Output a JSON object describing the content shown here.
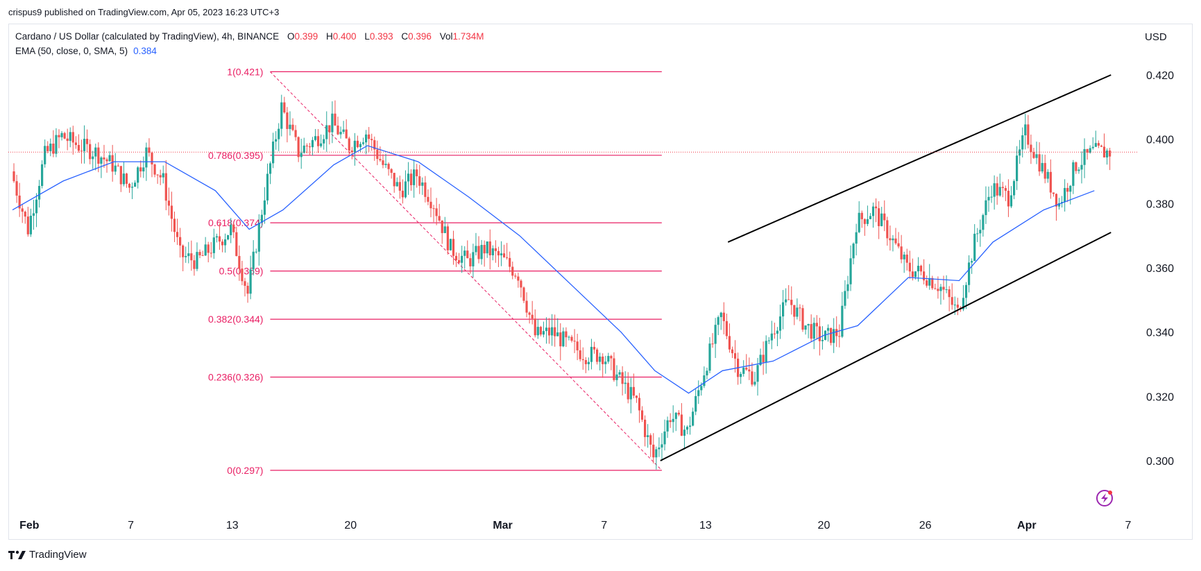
{
  "header": {
    "published_line": "crispus9 published on TradingView.com, Apr 05, 2023 16:23 UTC+3"
  },
  "legend": {
    "symbol": "Cardano / US Dollar (calculated by TradingView), 4h, BINANCE",
    "o_key": "O",
    "o_val": "0.399",
    "h_key": "H",
    "h_val": "0.400",
    "l_key": "L",
    "l_val": "0.393",
    "c_key": "C",
    "c_val": "0.396",
    "vol_key": "Vol",
    "vol_val": "1.734M",
    "ema_label": "EMA (50, close, 0, SMA, 5)",
    "ema_val": "0.384"
  },
  "axis": {
    "currency": "USD"
  },
  "footer": {
    "brand": "TradingView",
    "logo_text": "17"
  },
  "colors": {
    "up": "#26a69a",
    "down": "#ef5350",
    "ema": "#2962ff",
    "fib": "#e91e63",
    "channel": "#000000",
    "price_line": "#f23645",
    "grid": "#ffffff"
  },
  "chart_data": {
    "type": "candlestick",
    "title": "Cardano / US Dollar (calculated by TradingView), 4h, BINANCE",
    "ylabel": "USD",
    "ylim": [
      0.285,
      0.432
    ],
    "xlim": [
      "2023-01-31",
      "2023-04-07"
    ],
    "y_ticks": [
      0.3,
      0.32,
      0.34,
      0.36,
      0.38,
      0.4,
      0.42
    ],
    "y_tick_labels": [
      "0.300",
      "0.320",
      "0.340",
      "0.360",
      "0.380",
      "0.400",
      "0.420"
    ],
    "x_ticks": [
      {
        "label": "Feb",
        "date": "2023-02-01",
        "bold": true
      },
      {
        "label": "7",
        "date": "2023-02-07",
        "bold": false
      },
      {
        "label": "13",
        "date": "2023-02-13",
        "bold": false
      },
      {
        "label": "20",
        "date": "2023-02-20",
        "bold": false
      },
      {
        "label": "Mar",
        "date": "2023-03-01",
        "bold": true
      },
      {
        "label": "7",
        "date": "2023-03-07",
        "bold": false
      },
      {
        "label": "13",
        "date": "2023-03-13",
        "bold": false
      },
      {
        "label": "20",
        "date": "2023-03-20",
        "bold": false
      },
      {
        "label": "26",
        "date": "2023-03-26",
        "bold": false
      },
      {
        "label": "Apr",
        "date": "2023-04-01",
        "bold": true
      },
      {
        "label": "7",
        "date": "2023-04-07",
        "bold": false
      }
    ],
    "close_path": [
      [
        "2023-01-31",
        0.39
      ],
      [
        "2023-02-01",
        0.372
      ],
      [
        "2023-02-02",
        0.395
      ],
      [
        "2023-02-03",
        0.401
      ],
      [
        "2023-02-04",
        0.398
      ],
      [
        "2023-02-05",
        0.396
      ],
      [
        "2023-02-06",
        0.392
      ],
      [
        "2023-02-07",
        0.385
      ],
      [
        "2023-02-08",
        0.396
      ],
      [
        "2023-02-09",
        0.387
      ],
      [
        "2023-02-10",
        0.364
      ],
      [
        "2023-02-11",
        0.362
      ],
      [
        "2023-02-12",
        0.367
      ],
      [
        "2023-02-13",
        0.372
      ],
      [
        "2023-02-14",
        0.352
      ],
      [
        "2023-02-15",
        0.383
      ],
      [
        "2023-02-16",
        0.41
      ],
      [
        "2023-02-17",
        0.396
      ],
      [
        "2023-02-18",
        0.4
      ],
      [
        "2023-02-19",
        0.405
      ],
      [
        "2023-02-20",
        0.398
      ],
      [
        "2023-02-21",
        0.402
      ],
      [
        "2023-02-22",
        0.392
      ],
      [
        "2023-02-23",
        0.384
      ],
      [
        "2023-02-24",
        0.389
      ],
      [
        "2023-02-25",
        0.38
      ],
      [
        "2023-02-26",
        0.366
      ],
      [
        "2023-02-27",
        0.362
      ],
      [
        "2023-02-28",
        0.366
      ],
      [
        "2023-03-01",
        0.363
      ],
      [
        "2023-03-02",
        0.358
      ],
      [
        "2023-03-03",
        0.339
      ],
      [
        "2023-03-04",
        0.34
      ],
      [
        "2023-03-05",
        0.336
      ],
      [
        "2023-03-06",
        0.333
      ],
      [
        "2023-03-07",
        0.333
      ],
      [
        "2023-03-08",
        0.325
      ],
      [
        "2023-03-09",
        0.318
      ],
      [
        "2023-03-10",
        0.301
      ],
      [
        "2023-03-11",
        0.314
      ],
      [
        "2023-03-12",
        0.309
      ],
      [
        "2023-03-13",
        0.328
      ],
      [
        "2023-03-14",
        0.345
      ],
      [
        "2023-03-15",
        0.329
      ],
      [
        "2023-03-16",
        0.326
      ],
      [
        "2023-03-17",
        0.34
      ],
      [
        "2023-03-18",
        0.35
      ],
      [
        "2023-03-19",
        0.342
      ],
      [
        "2023-03-20",
        0.338
      ],
      [
        "2023-03-21",
        0.34
      ],
      [
        "2023-03-22",
        0.374
      ],
      [
        "2023-03-23",
        0.378
      ],
      [
        "2023-03-24",
        0.37
      ],
      [
        "2023-03-25",
        0.36
      ],
      [
        "2023-03-26",
        0.358
      ],
      [
        "2023-03-27",
        0.354
      ],
      [
        "2023-03-28",
        0.346
      ],
      [
        "2023-03-29",
        0.368
      ],
      [
        "2023-03-30",
        0.385
      ],
      [
        "2023-03-31",
        0.382
      ],
      [
        "2023-04-01",
        0.402
      ],
      [
        "2023-04-02",
        0.391
      ],
      [
        "2023-04-03",
        0.38
      ],
      [
        "2023-04-04",
        0.392
      ],
      [
        "2023-04-05",
        0.396
      ]
    ],
    "ema50_path": [
      [
        "2023-01-31",
        0.378
      ],
      [
        "2023-02-03",
        0.387
      ],
      [
        "2023-02-06",
        0.393
      ],
      [
        "2023-02-09",
        0.393
      ],
      [
        "2023-02-12",
        0.384
      ],
      [
        "2023-02-14",
        0.372
      ],
      [
        "2023-02-16",
        0.378
      ],
      [
        "2023-02-19",
        0.392
      ],
      [
        "2023-02-21",
        0.398
      ],
      [
        "2023-02-24",
        0.393
      ],
      [
        "2023-02-27",
        0.382
      ],
      [
        "2023-03-02",
        0.37
      ],
      [
        "2023-03-05",
        0.355
      ],
      [
        "2023-03-08",
        0.34
      ],
      [
        "2023-03-10",
        0.328
      ],
      [
        "2023-03-12",
        0.321
      ],
      [
        "2023-03-14",
        0.328
      ],
      [
        "2023-03-17",
        0.331
      ],
      [
        "2023-03-20",
        0.339
      ],
      [
        "2023-03-22",
        0.342
      ],
      [
        "2023-03-25",
        0.357
      ],
      [
        "2023-03-28",
        0.356
      ],
      [
        "2023-03-30",
        0.368
      ],
      [
        "2023-04-02",
        0.378
      ],
      [
        "2023-04-05",
        0.384
      ]
    ],
    "current_price": 0.396,
    "fibonacci": {
      "start_date": "2023-02-15",
      "end_date": "2023-03-10",
      "levels": [
        {
          "label": "1(0.421)",
          "value": 0.421
        },
        {
          "label": "0.786(0.395)",
          "value": 0.395
        },
        {
          "label": "0.618(0.374)",
          "value": 0.374
        },
        {
          "label": "0.5(0.359)",
          "value": 0.359
        },
        {
          "label": "0.382(0.344)",
          "value": 0.344
        },
        {
          "label": "0.236(0.326)",
          "value": 0.326
        },
        {
          "label": "0(0.297)",
          "value": 0.297
        }
      ]
    },
    "channel": {
      "upper": [
        [
          "2023-03-14",
          0.368
        ],
        [
          "2023-04-05",
          0.42
        ]
      ],
      "lower": [
        [
          "2023-03-10",
          0.3
        ],
        [
          "2023-04-05",
          0.371
        ]
      ]
    },
    "grid": false,
    "legend": "top-left"
  }
}
